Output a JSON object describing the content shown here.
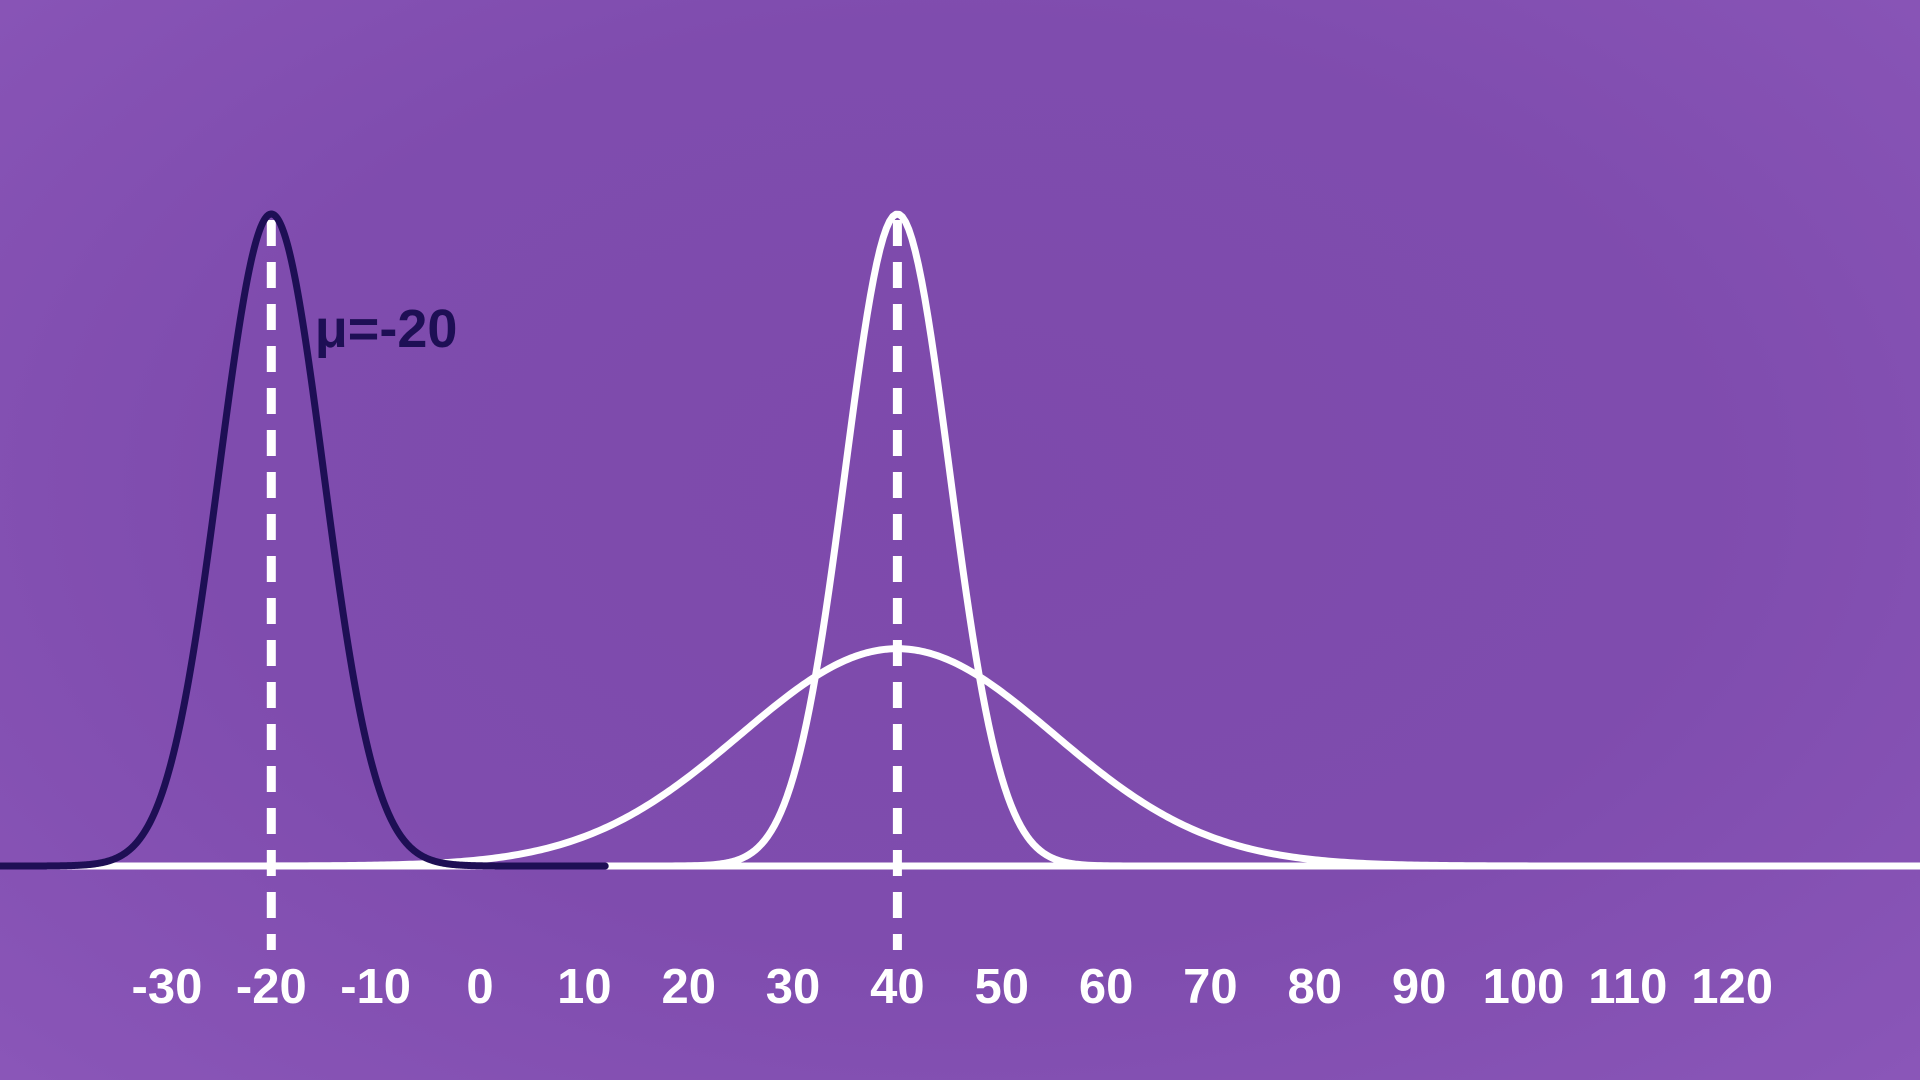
{
  "chart_data": {
    "type": "line",
    "title": "",
    "xlabel": "",
    "ylabel": "",
    "xlim": [
      -46,
      138
    ],
    "ylim": [
      0,
      0.082
    ],
    "x_ticks": [
      -30,
      -20,
      -10,
      0,
      10,
      20,
      30,
      40,
      50,
      60,
      70,
      80,
      90,
      100,
      110,
      120
    ],
    "x_tick_labels": [
      "-30",
      "-20",
      "-10",
      "0",
      "10",
      "20",
      "30",
      "40",
      "50",
      "60",
      "70",
      "80",
      "90",
      "100",
      "110",
      "120"
    ],
    "grid": false,
    "legend": "none",
    "baseline_color": "#ffffff",
    "series": [
      {
        "distribution": "normal",
        "mean": -20,
        "sd": 5,
        "x_range": [
          -46,
          12
        ],
        "color": "#1e0f55",
        "mean_line": true,
        "mean_line_color": "#ffffff"
      },
      {
        "distribution": "normal",
        "mean": 40,
        "sd": 5,
        "x_range": [
          -46,
          138
        ],
        "color": "#ffffff",
        "mean_line": true,
        "mean_line_color": "#ffffff"
      },
      {
        "distribution": "normal",
        "mean": 40,
        "sd": 15,
        "x_range": [
          -46,
          138
        ],
        "color": "#ffffff",
        "mean_line": false
      }
    ],
    "annotations": [
      {
        "text": "μ=-20",
        "x": -9,
        "y": 0.0635,
        "color": "#1e0f55"
      }
    ]
  }
}
